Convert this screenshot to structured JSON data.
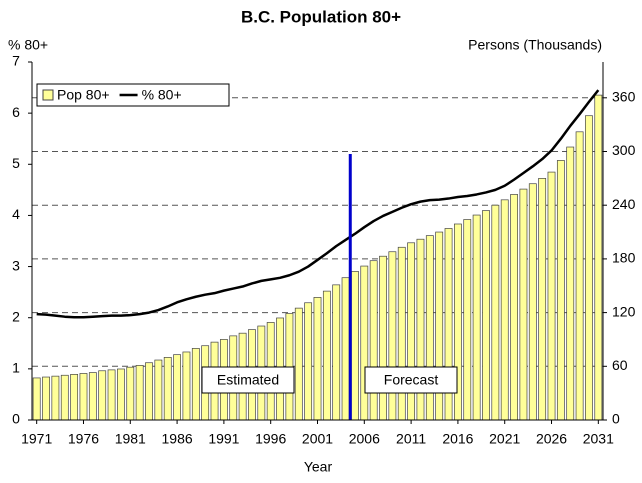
{
  "chart_data": {
    "type": "combo",
    "title": "B.C. Population 80+",
    "ylabel": "% 80+",
    "y2label": "Persons (Thousands)",
    "xlabel": "Year",
    "categories": [
      "1971",
      null,
      null,
      null,
      null,
      "1976",
      null,
      null,
      null,
      null,
      "1981",
      null,
      null,
      null,
      null,
      "1986",
      null,
      null,
      null,
      null,
      "1991",
      null,
      null,
      null,
      null,
      "1996",
      null,
      null,
      null,
      null,
      "2001",
      null,
      null,
      null,
      null,
      "2006",
      null,
      null,
      null,
      null,
      "2011",
      null,
      null,
      null,
      null,
      "2016",
      null,
      null,
      null,
      null,
      "2021",
      null,
      null,
      null,
      null,
      "2026",
      null,
      null,
      null,
      null,
      "2031"
    ],
    "series": [
      {
        "name": "Pop 80+",
        "type": "bar",
        "axis": "y2",
        "color": "#ffff99",
        "values": [
          47,
          48,
          49,
          50,
          51,
          52,
          53,
          55,
          56,
          57,
          59,
          61,
          64,
          67,
          70,
          73,
          76,
          80,
          83,
          87,
          90,
          94,
          97,
          101,
          105,
          109,
          114,
          119,
          125,
          131,
          137,
          144,
          151,
          159,
          166,
          172,
          178,
          183,
          188,
          193,
          198,
          202,
          206,
          210,
          214,
          219,
          224,
          229,
          234,
          240,
          246,
          252,
          258,
          264,
          270,
          277,
          290,
          305,
          322,
          340,
          363
        ]
      },
      {
        "name": "% 80+",
        "type": "line",
        "color": "#000000",
        "values": [
          2.07,
          2.06,
          2.04,
          2.02,
          2.01,
          2.01,
          2.02,
          2.03,
          2.04,
          2.04,
          2.05,
          2.07,
          2.1,
          2.15,
          2.22,
          2.3,
          2.36,
          2.41,
          2.45,
          2.48,
          2.53,
          2.57,
          2.61,
          2.67,
          2.72,
          2.75,
          2.78,
          2.83,
          2.9,
          3.0,
          3.13,
          3.26,
          3.4,
          3.52,
          3.64,
          3.77,
          3.89,
          3.99,
          4.07,
          4.15,
          4.22,
          4.27,
          4.3,
          4.31,
          4.33,
          4.36,
          4.38,
          4.41,
          4.45,
          4.5,
          4.58,
          4.7,
          4.83,
          4.96,
          5.1,
          5.27,
          5.5,
          5.75,
          5.98,
          6.22,
          6.45
        ]
      }
    ],
    "ylim": [
      0,
      7
    ],
    "yticks": [
      0,
      1,
      2,
      3,
      4,
      5,
      6,
      7
    ],
    "y2lim": [
      0,
      400
    ],
    "y2ticks": [
      0,
      60,
      120,
      180,
      240,
      300,
      360
    ],
    "grid": true,
    "legend": "top-left",
    "divider": {
      "category_index": 33,
      "top": 5.2,
      "color": "#0000cc"
    },
    "annotations": [
      "Estimated",
      "Forecast"
    ]
  }
}
